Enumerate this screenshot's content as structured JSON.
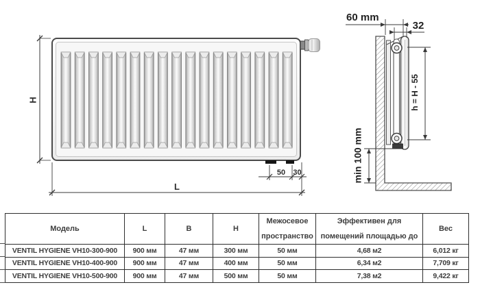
{
  "diagram": {
    "front_view": {
      "height_label": "H",
      "length_label": "L",
      "bracket_offset_50": "50",
      "bracket_offset_30": "30",
      "grooves": 17
    },
    "side_view": {
      "wall_distance": "60 mm",
      "depth": "32",
      "axis_height": "h = H - 55",
      "floor_clearance": "min 100 mm"
    }
  },
  "table": {
    "headers": [
      "Модель",
      "L",
      "B",
      "H",
      "Межосевое пространство",
      "Эффективен для помещений площадью до",
      "Вес"
    ],
    "rows": [
      [
        "VENTIL HYGIENE VH10-300-900",
        "900 мм",
        "47 мм",
        "300 мм",
        "50 мм",
        "4,68 м2",
        "6,012 кг"
      ],
      [
        "VENTIL HYGIENE VH10-400-900",
        "900 мм",
        "47 мм",
        "400 мм",
        "50 мм",
        "6,34 м2",
        "7,709 кг"
      ],
      [
        "VENTIL HYGIENE VH10-500-900",
        "900 мм",
        "47 мм",
        "500 мм",
        "50 мм",
        "7,38 м2",
        "9,422 кг"
      ]
    ]
  },
  "colors": {
    "drawing_line": "#3a3a3a",
    "table_border": "#2d2d2d",
    "table_text": "#3d3d3d"
  }
}
